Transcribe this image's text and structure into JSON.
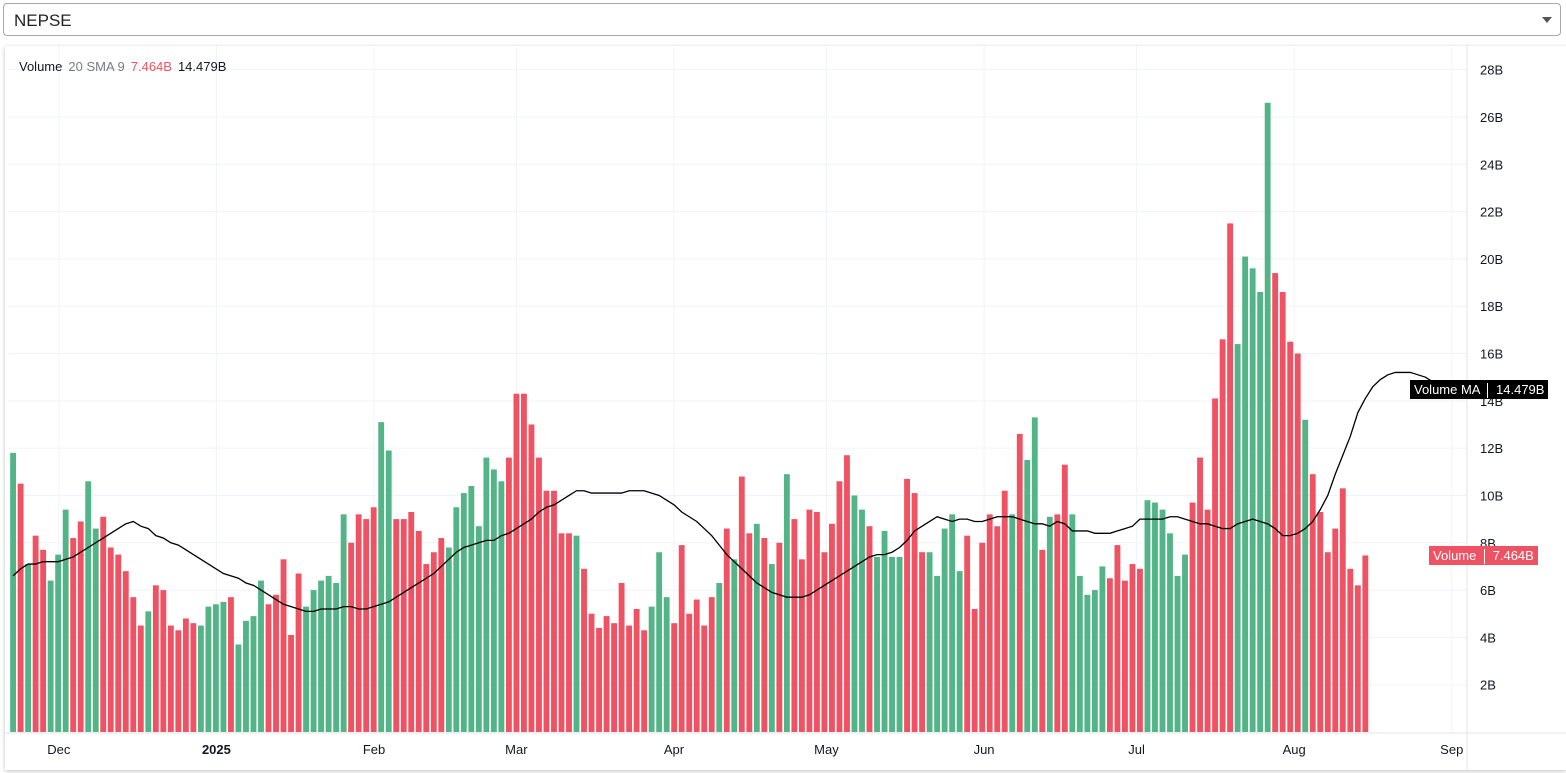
{
  "selector": {
    "value": "NEPSE"
  },
  "legend": {
    "name": "Volume",
    "params": "20 SMA 9",
    "volume_value": "7.464B",
    "ma_value": "14.479B"
  },
  "badges": {
    "ma_label": "Volume MA",
    "ma_value": "14.479B",
    "volume_label": "Volume",
    "volume_value": "7.464B"
  },
  "colors": {
    "up": "#53b587",
    "down": "#ef5363",
    "ma_line": "#000000",
    "grid": "#f0f3fa",
    "badge_ma": "#000000",
    "badge_volume": "#ef5363"
  },
  "chart_data": {
    "type": "bar",
    "title": "",
    "ylabel": "",
    "xlabel": "",
    "unit": "B",
    "ylim": [
      0,
      29
    ],
    "yticks": [
      2,
      4,
      6,
      8,
      10,
      12,
      14,
      16,
      18,
      20,
      22,
      24,
      26,
      28
    ],
    "ytick_labels": [
      "2B",
      "4B",
      "6B",
      "8B",
      "10B",
      "12B",
      "14B",
      "16B",
      "18B",
      "20B",
      "22B",
      "24B",
      "26B",
      "28B"
    ],
    "x_range": [
      "2024-11-21",
      "2025-09-04"
    ],
    "x_ticks": [
      {
        "date": "2024-12-01",
        "label": "Dec",
        "bold": false
      },
      {
        "date": "2025-01-01",
        "label": "2025",
        "bold": true
      },
      {
        "date": "2025-02-01",
        "label": "Feb",
        "bold": false
      },
      {
        "date": "2025-03-01",
        "label": "Mar",
        "bold": false
      },
      {
        "date": "2025-04-01",
        "label": "Apr",
        "bold": false
      },
      {
        "date": "2025-05-01",
        "label": "May",
        "bold": false
      },
      {
        "date": "2025-06-01",
        "label": "Jun",
        "bold": false
      },
      {
        "date": "2025-07-01",
        "label": "Jul",
        "bold": false
      },
      {
        "date": "2025-08-01",
        "label": "Aug",
        "bold": false
      },
      {
        "date": "2025-09-01",
        "label": "Sep",
        "bold": false
      }
    ],
    "first_bar_date": "2024-11-22",
    "last_bar_date": "2025-08-15",
    "series": [
      {
        "name": "Volume",
        "values": [
          11.8,
          10.5,
          7.1,
          8.3,
          7.7,
          6.4,
          7.5,
          9.4,
          8.2,
          8.9,
          10.6,
          8.6,
          9.1,
          7.8,
          7.5,
          6.8,
          5.7,
          4.5,
          5.1,
          6.2,
          6.0,
          4.5,
          4.3,
          4.8,
          4.6,
          4.5,
          5.3,
          5.4,
          5.5,
          5.7,
          3.7,
          4.7,
          4.9,
          6.4,
          5.4,
          5.8,
          7.3,
          4.1,
          6.7,
          5.3,
          6.0,
          6.4,
          6.6,
          6.3,
          9.2,
          8.0,
          9.2,
          9.0,
          9.5,
          13.1,
          11.9,
          9.0,
          9.0,
          9.3,
          8.5,
          7.1,
          7.6,
          8.2,
          7.8,
          9.5,
          10.1,
          10.4,
          8.7,
          11.6,
          11.1,
          10.6,
          11.6,
          14.3,
          14.3,
          13.0,
          11.6,
          10.2,
          10.2,
          8.4,
          8.4,
          8.3,
          6.9,
          5.0,
          4.4,
          4.9,
          4.6,
          6.3,
          4.5,
          5.2,
          4.3,
          5.3,
          7.6,
          5.7,
          4.6,
          7.9,
          5.0,
          5.6,
          4.5,
          5.7,
          6.3,
          8.6,
          7.3,
          10.8,
          8.4,
          8.8,
          8.2,
          7.1,
          8.0,
          10.9,
          9.0,
          7.3,
          9.4,
          9.3,
          7.6,
          8.8,
          10.6,
          11.7,
          10.0,
          9.4,
          8.7,
          7.4,
          8.5,
          7.4,
          7.4,
          10.7,
          10.1,
          7.6,
          7.6,
          6.6,
          8.6,
          9.2,
          6.8,
          8.3,
          5.2,
          8.0,
          9.2,
          8.7,
          10.2,
          9.2,
          12.6,
          11.5,
          13.3,
          7.7,
          9.1,
          9.2,
          11.3,
          9.2,
          6.6,
          5.8,
          6.0,
          7.0,
          6.5,
          7.9,
          6.4,
          7.1,
          6.9,
          9.8,
          9.7,
          9.4,
          8.4,
          6.6,
          7.5,
          9.7,
          11.6,
          9.4,
          14.1,
          16.6,
          21.5,
          16.4,
          20.1,
          19.6,
          18.6,
          26.6,
          19.4,
          18.6,
          16.5,
          16.0,
          13.2,
          10.9,
          9.3,
          7.6,
          8.6,
          10.3,
          6.9,
          6.2,
          7.464
        ],
        "directions": "UDUDDUUUDDUUDDDDDDUDDDDDDUUUUDUUUUDDDDDUUUUUUDDDDUUDDDDDDDUUUUUUUUDDDDDDDDDUDDDDDDDDDUUUDDDDDDUDUDDUDUDUDDDDDDDDUUDUUUUDDDUUUUUDDDDDDUDUUDUDDUUUUUDDDDDUUUUUUDDDDDDUUUUUDDDDUDDDDDDDDUUUUUUUUUDUDDDDDDUUDDDDD"
      },
      {
        "name": "Volume MA",
        "values": [
          6.6,
          6.9,
          7.1,
          7.1,
          7.2,
          7.2,
          7.2,
          7.3,
          7.4,
          7.6,
          7.8,
          8.0,
          8.2,
          8.4,
          8.6,
          8.8,
          8.9,
          8.7,
          8.6,
          8.3,
          8.2,
          8.0,
          7.9,
          7.7,
          7.5,
          7.3,
          7.1,
          6.9,
          6.7,
          6.6,
          6.5,
          6.3,
          6.2,
          6.0,
          5.8,
          5.6,
          5.4,
          5.3,
          5.2,
          5.1,
          5.1,
          5.2,
          5.2,
          5.2,
          5.3,
          5.3,
          5.2,
          5.2,
          5.3,
          5.4,
          5.5,
          5.7,
          5.9,
          6.1,
          6.3,
          6.5,
          6.7,
          7.0,
          7.3,
          7.6,
          7.8,
          7.9,
          8.0,
          8.1,
          8.1,
          8.3,
          8.4,
          8.6,
          8.8,
          9.0,
          9.3,
          9.5,
          9.6,
          9.8,
          10.0,
          10.2,
          10.2,
          10.1,
          10.1,
          10.1,
          10.1,
          10.1,
          10.2,
          10.2,
          10.2,
          10.1,
          10.0,
          9.8,
          9.6,
          9.3,
          9.1,
          8.9,
          8.6,
          8.3,
          7.9,
          7.5,
          7.2,
          6.9,
          6.6,
          6.3,
          6.1,
          5.9,
          5.8,
          5.7,
          5.7,
          5.7,
          5.8,
          6.0,
          6.2,
          6.4,
          6.6,
          6.8,
          7.0,
          7.2,
          7.4,
          7.5,
          7.5,
          7.6,
          7.8,
          8.1,
          8.5,
          8.7,
          8.9,
          9.1,
          9.0,
          8.9,
          9.0,
          9.0,
          8.9,
          8.9,
          9.0,
          9.1,
          9.1,
          9.1,
          9.0,
          8.9,
          8.8,
          8.8,
          8.7,
          8.9,
          8.8,
          8.5,
          8.5,
          8.5,
          8.4,
          8.4,
          8.4,
          8.5,
          8.6,
          8.7,
          9.0,
          9.0,
          9.0,
          9.0,
          9.1,
          9.1,
          9.0,
          8.9,
          8.8,
          8.8,
          8.7,
          8.6,
          8.6,
          8.8,
          8.9,
          9.0,
          8.9,
          8.8,
          8.6,
          8.3,
          8.3,
          8.4,
          8.6,
          8.9,
          9.4,
          10.0,
          10.9,
          11.7,
          12.5,
          13.5,
          14.1,
          14.6,
          14.9,
          15.1,
          15.2,
          15.2,
          15.2,
          15.1,
          15.0,
          14.8,
          14.479
        ]
      }
    ]
  }
}
